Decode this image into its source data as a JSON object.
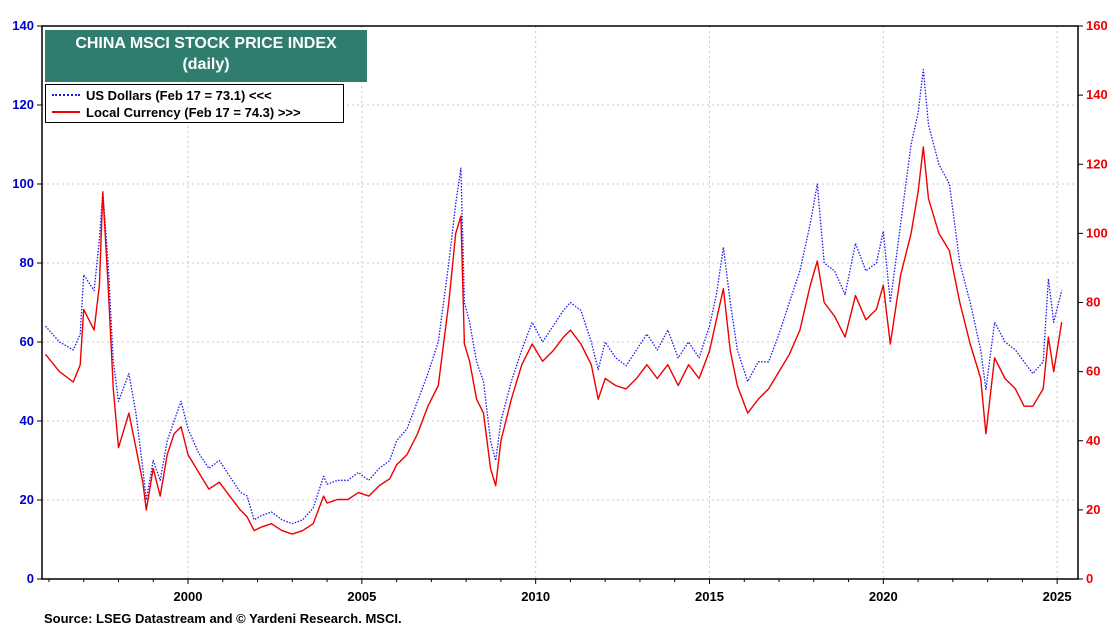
{
  "chart_data": {
    "type": "line",
    "title": "CHINA MSCI STOCK PRICE INDEX",
    "subtitle": "(daily)",
    "source": "Source: LSEG Datastream and © Yardeni Research. MSCI.",
    "x_ticks": [
      "2000",
      "2005",
      "2010",
      "2015",
      "2020",
      "2025"
    ],
    "x_tick_values": [
      2000,
      2005,
      2010,
      2015,
      2020,
      2025
    ],
    "xlim": [
      1995.8,
      2025.6
    ],
    "y_left": {
      "lim": [
        0,
        140
      ],
      "ticks": [
        "0",
        "20",
        "40",
        "60",
        "80",
        "100",
        "120",
        "140"
      ],
      "color": "#0000cc"
    },
    "y_right": {
      "lim": [
        0,
        160
      ],
      "ticks": [
        "0",
        "20",
        "40",
        "60",
        "80",
        "100",
        "120",
        "140",
        "160"
      ],
      "color": "#ee0000"
    },
    "grid": true,
    "legend_position": "top-left",
    "series": [
      {
        "name": "US Dollars (Feb 17 = 73.1) <<<",
        "axis": "left",
        "color": "#1a1aee",
        "style": "dotted",
        "x": [
          1995.9,
          1996.3,
          1996.7,
          1996.9,
          1997.0,
          1997.3,
          1997.45,
          1997.55,
          1997.7,
          1997.85,
          1998.0,
          1998.3,
          1998.5,
          1998.7,
          1998.8,
          1999.0,
          1999.2,
          1999.4,
          1999.6,
          1999.8,
          2000.0,
          2000.3,
          2000.6,
          2000.9,
          2001.2,
          2001.5,
          2001.7,
          2001.9,
          2002.1,
          2002.4,
          2002.7,
          2003.0,
          2003.3,
          2003.6,
          2003.9,
          2004.0,
          2004.3,
          2004.6,
          2004.9,
          2005.2,
          2005.5,
          2005.8,
          2006.0,
          2006.3,
          2006.6,
          2006.9,
          2007.2,
          2007.5,
          2007.7,
          2007.85,
          2007.95,
          2008.1,
          2008.3,
          2008.5,
          2008.7,
          2008.85,
          2009.0,
          2009.3,
          2009.6,
          2009.9,
          2010.2,
          2010.5,
          2010.8,
          2011.0,
          2011.3,
          2011.6,
          2011.8,
          2012.0,
          2012.3,
          2012.6,
          2012.9,
          2013.2,
          2013.5,
          2013.8,
          2014.1,
          2014.4,
          2014.7,
          2015.0,
          2015.2,
          2015.4,
          2015.6,
          2015.8,
          2016.1,
          2016.4,
          2016.7,
          2017.0,
          2017.3,
          2017.6,
          2017.9,
          2018.1,
          2018.3,
          2018.6,
          2018.9,
          2019.2,
          2019.5,
          2019.8,
          2020.0,
          2020.2,
          2020.5,
          2020.8,
          2021.0,
          2021.15,
          2021.3,
          2021.6,
          2021.9,
          2022.2,
          2022.5,
          2022.8,
          2022.95,
          2023.2,
          2023.5,
          2023.8,
          2024.05,
          2024.3,
          2024.6,
          2024.75,
          2024.9,
          2025.13
        ],
        "y": [
          64,
          60,
          58,
          62,
          77,
          73,
          86,
          98,
          80,
          55,
          45,
          52,
          42,
          28,
          20,
          30,
          25,
          35,
          40,
          45,
          38,
          32,
          28,
          30,
          26,
          22,
          21,
          15,
          16,
          17,
          15,
          14,
          15,
          18,
          26,
          24,
          25,
          25,
          27,
          25,
          28,
          30,
          35,
          38,
          45,
          52,
          60,
          80,
          95,
          104,
          70,
          65,
          55,
          50,
          35,
          30,
          40,
          50,
          58,
          65,
          60,
          64,
          68,
          70,
          68,
          60,
          53,
          60,
          56,
          54,
          58,
          62,
          58,
          63,
          56,
          60,
          56,
          64,
          72,
          84,
          70,
          58,
          50,
          55,
          55,
          62,
          70,
          78,
          90,
          100,
          80,
          78,
          72,
          85,
          78,
          80,
          88,
          70,
          90,
          110,
          118,
          129,
          115,
          105,
          100,
          80,
          70,
          58,
          48,
          65,
          60,
          58,
          55,
          52,
          55,
          76,
          65,
          73.1
        ]
      },
      {
        "name": "Local Currency (Feb 17 = 74.3) >>>",
        "axis": "right",
        "color": "#ee0000",
        "style": "solid",
        "x": [
          1995.9,
          1996.3,
          1996.7,
          1996.9,
          1997.0,
          1997.3,
          1997.45,
          1997.55,
          1997.7,
          1997.85,
          1998.0,
          1998.3,
          1998.5,
          1998.7,
          1998.8,
          1999.0,
          1999.2,
          1999.4,
          1999.6,
          1999.8,
          2000.0,
          2000.3,
          2000.6,
          2000.9,
          2001.2,
          2001.5,
          2001.7,
          2001.9,
          2002.1,
          2002.4,
          2002.7,
          2003.0,
          2003.3,
          2003.6,
          2003.9,
          2004.0,
          2004.3,
          2004.6,
          2004.9,
          2005.2,
          2005.5,
          2005.8,
          2006.0,
          2006.3,
          2006.6,
          2006.9,
          2007.2,
          2007.5,
          2007.7,
          2007.85,
          2007.95,
          2008.1,
          2008.3,
          2008.5,
          2008.7,
          2008.85,
          2009.0,
          2009.3,
          2009.6,
          2009.9,
          2010.2,
          2010.5,
          2010.8,
          2011.0,
          2011.3,
          2011.6,
          2011.8,
          2012.0,
          2012.3,
          2012.6,
          2012.9,
          2013.2,
          2013.5,
          2013.8,
          2014.1,
          2014.4,
          2014.7,
          2015.0,
          2015.2,
          2015.4,
          2015.6,
          2015.8,
          2016.1,
          2016.4,
          2016.7,
          2017.0,
          2017.3,
          2017.6,
          2017.9,
          2018.1,
          2018.3,
          2018.6,
          2018.9,
          2019.2,
          2019.5,
          2019.8,
          2020.0,
          2020.2,
          2020.5,
          2020.8,
          2021.0,
          2021.15,
          2021.3,
          2021.6,
          2021.9,
          2022.2,
          2022.5,
          2022.8,
          2022.95,
          2023.2,
          2023.5,
          2023.8,
          2024.05,
          2024.3,
          2024.6,
          2024.75,
          2024.9,
          2025.13
        ],
        "y": [
          65,
          60,
          57,
          62,
          78,
          72,
          85,
          112,
          85,
          55,
          38,
          48,
          38,
          28,
          20,
          32,
          24,
          36,
          42,
          44,
          36,
          31,
          26,
          28,
          24,
          20,
          18,
          14,
          15,
          16,
          14,
          13,
          14,
          16,
          24,
          22,
          23,
          23,
          25,
          24,
          27,
          29,
          33,
          36,
          42,
          50,
          56,
          80,
          100,
          105,
          68,
          63,
          52,
          48,
          32,
          27,
          40,
          52,
          62,
          68,
          63,
          66,
          70,
          72,
          68,
          62,
          52,
          58,
          56,
          55,
          58,
          62,
          58,
          62,
          56,
          62,
          58,
          66,
          75,
          84,
          66,
          56,
          48,
          52,
          55,
          60,
          65,
          72,
          85,
          92,
          80,
          76,
          70,
          82,
          75,
          78,
          85,
          68,
          88,
          100,
          112,
          125,
          110,
          100,
          95,
          80,
          68,
          58,
          42,
          64,
          58,
          55,
          50,
          50,
          55,
          70,
          60,
          74.3
        ]
      }
    ]
  }
}
